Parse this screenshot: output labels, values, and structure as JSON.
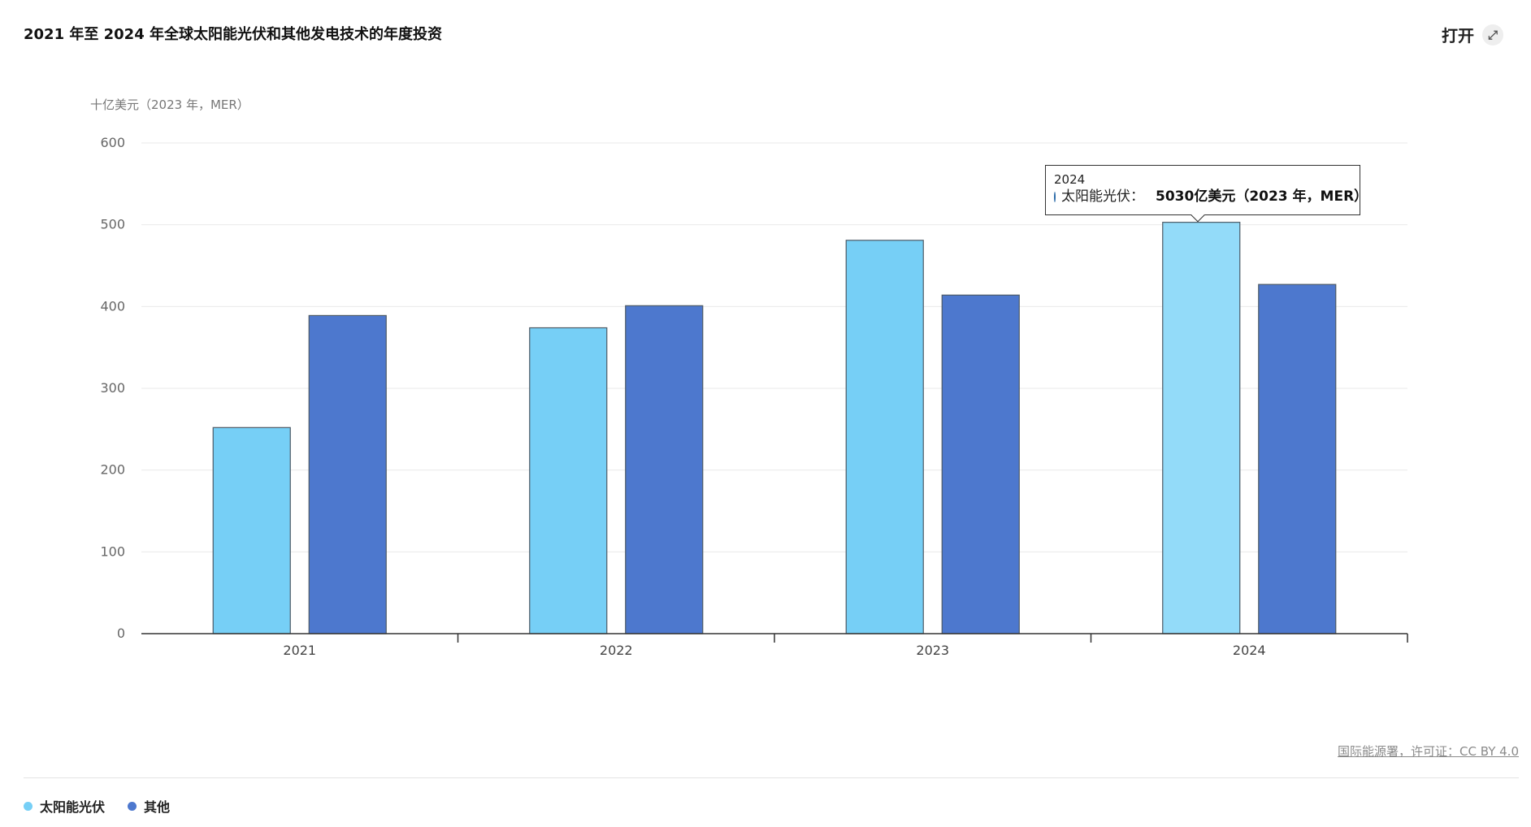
{
  "title": "2021 年至 2024 年全球太阳能光伏和其他发电技术的年度投资",
  "open_button": {
    "label": "打开",
    "icon": "external-link-icon"
  },
  "source": "国际能源署，许可证：CC BY 4.0",
  "tooltip": {
    "year": "2024",
    "series": "太阳能光伏：",
    "value": "5030亿美元（2023 年，MER）"
  },
  "colors": {
    "solar": "#76cff6",
    "solar_highlight": "#93dbf9",
    "other": "#4d78ce",
    "axis": "#333333",
    "grid": "#eaeaea"
  },
  "chart_data": {
    "type": "bar",
    "title": "2021 年至 2024 年全球太阳能光伏和其他发电技术的年度投资",
    "ylabel": "十亿美元（2023 年，MER）",
    "xlabel": "",
    "categories": [
      "2021",
      "2022",
      "2023",
      "2024"
    ],
    "ylim": [
      0,
      600
    ],
    "yticks": [
      0,
      100,
      200,
      300,
      400,
      500,
      600
    ],
    "series": [
      {
        "name": "太阳能光伏",
        "values": [
          252,
          374,
          481,
          503
        ]
      },
      {
        "name": "其他",
        "values": [
          389,
          401,
          414,
          427
        ]
      }
    ],
    "grid": true,
    "legend": "bottom-left"
  }
}
